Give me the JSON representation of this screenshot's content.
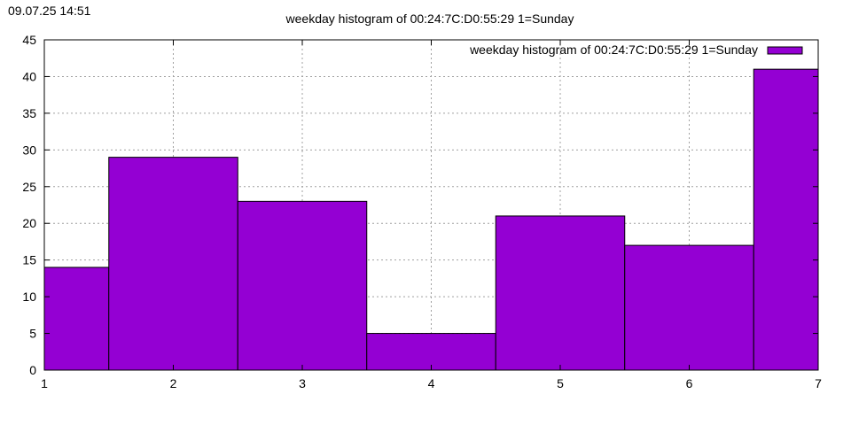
{
  "timestamp": "09.07.25 14:51",
  "chart_data": {
    "type": "bar",
    "title": "weekday histogram of 00:24:7C:D0:55:29 1=Sunday",
    "xlabel": "",
    "ylabel": "",
    "categories": [
      "1",
      "2",
      "3",
      "4",
      "5",
      "6",
      "7"
    ],
    "series": [
      {
        "name": "weekday histogram of 00:24:7C:D0:55:29 1=Sunday",
        "values": [
          14,
          29,
          23,
          5,
          21,
          17,
          41
        ],
        "color": "#9400d3"
      }
    ],
    "xlim": [
      1,
      7
    ],
    "ylim": [
      0,
      45
    ],
    "xticks": [
      "1",
      "2",
      "3",
      "4",
      "5",
      "6",
      "7"
    ],
    "yticks": [
      "0",
      "5",
      "10",
      "15",
      "20",
      "25",
      "30",
      "35",
      "40",
      "45"
    ],
    "grid": true,
    "legend": "top-right"
  }
}
